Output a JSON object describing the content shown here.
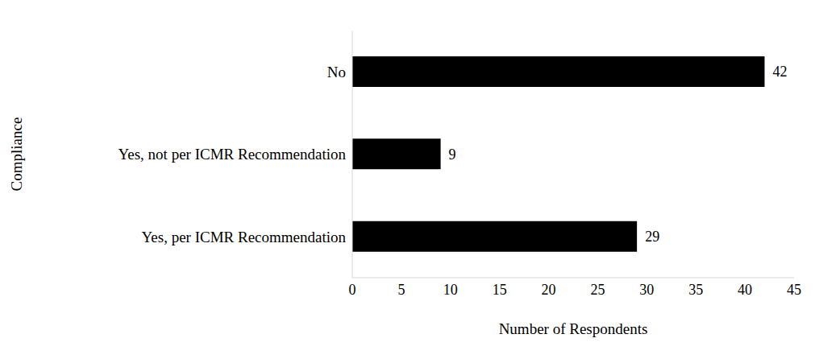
{
  "chart_data": {
    "type": "bar",
    "orientation": "horizontal",
    "categories": [
      "No",
      "Yes, not per ICMR Recommendation",
      "Yes, per ICMR Recommendation"
    ],
    "values": [
      42,
      9,
      29
    ],
    "color": "#000000",
    "xlabel": "Number of Respondents",
    "ylabel": "Compliance",
    "xlim": [
      0,
      45
    ],
    "xticks": [
      0,
      5,
      10,
      15,
      20,
      25,
      30,
      35,
      40,
      45
    ],
    "grid": false,
    "data_labels": true
  }
}
